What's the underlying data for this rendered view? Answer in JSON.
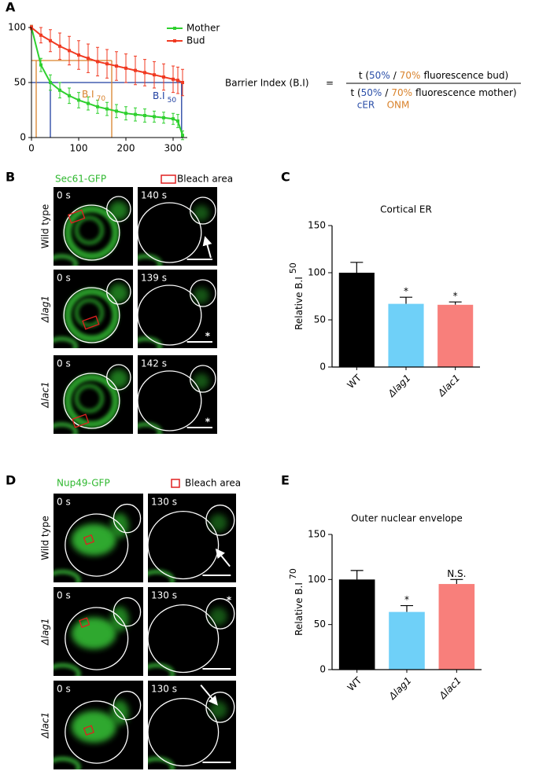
{
  "panel_labels": [
    "A",
    "B",
    "C",
    "D",
    "E"
  ],
  "chart_data": [
    {
      "type": "line",
      "x": [
        0,
        20,
        40,
        60,
        80,
        100,
        120,
        140,
        160,
        180,
        200,
        220,
        240,
        260,
        280,
        300,
        310,
        320
      ],
      "xlim": [
        0,
        330
      ],
      "xticks": [
        0,
        100,
        200,
        300
      ],
      "ylim": [
        0,
        100
      ],
      "yticks": [
        0,
        50,
        100
      ],
      "series": [
        {
          "name": "Mother",
          "color": "#2fd02f",
          "values": [
            100,
            66,
            50,
            43,
            38,
            34,
            31,
            28,
            26,
            24,
            22,
            21,
            20,
            19,
            18,
            17,
            15,
            2
          ],
          "errors": [
            2,
            6,
            7,
            7,
            7,
            7,
            6,
            6,
            6,
            6,
            6,
            6,
            6,
            5,
            5,
            5,
            6,
            4
          ]
        },
        {
          "name": "Bud",
          "color": "#f03a22",
          "values": [
            100,
            93,
            88,
            83,
            79,
            75,
            72,
            69,
            67,
            65,
            63,
            61,
            59,
            57,
            55,
            53,
            52,
            50
          ],
          "errors": [
            2,
            7,
            10,
            12,
            13,
            13,
            13,
            13,
            13,
            13,
            13,
            13,
            12,
            12,
            12,
            12,
            12,
            12
          ]
        }
      ],
      "ref_lines": [
        {
          "color": "#1f3fa0",
          "y": 50,
          "x": [
            40,
            318
          ]
        },
        {
          "color": "#d9822b",
          "y": 70,
          "x": [
            10,
            170
          ]
        }
      ],
      "annotations": [
        {
          "text": "B.I",
          "sub": "70",
          "color": "#d9822b"
        },
        {
          "text": "B.I",
          "sub": "50",
          "color": "#1f3fa0"
        }
      ]
    },
    {
      "type": "bar",
      "title": "Cortical ER",
      "ylabel": "Relative B.I",
      "ylabel_sub": "50",
      "ylim": [
        0,
        150
      ],
      "yticks": [
        0,
        50,
        100,
        150
      ],
      "categories": [
        "WT",
        "Δlag1",
        "Δlac1"
      ],
      "values": [
        100,
        67,
        66
      ],
      "errors": [
        11,
        7,
        3
      ],
      "colors": [
        "#000000",
        "#6fd0f8",
        "#f87f7b"
      ],
      "significance": [
        null,
        "*",
        "*"
      ]
    },
    {
      "type": "bar",
      "title": "Outer nuclear envelope",
      "ylabel": "Relative B.I",
      "ylabel_sub": "70",
      "ylim": [
        0,
        150
      ],
      "yticks": [
        0,
        50,
        100,
        150
      ],
      "categories": [
        "WT",
        "Δlag1",
        "Δlac1"
      ],
      "values": [
        100,
        64,
        95
      ],
      "errors": [
        10,
        7,
        5
      ],
      "colors": [
        "#000000",
        "#6fd0f8",
        "#f87f7b"
      ],
      "significance": [
        null,
        "*",
        "N.S."
      ]
    }
  ],
  "formula": {
    "lhs": "Barrier Index (B.I)",
    "equals": "=",
    "open": "t (",
    "pct50": "50%",
    "slash": "/",
    "pct70": "70%",
    "bud": "fluorescence bud)",
    "mother": "fluorescence mother)",
    "sub50": "cER",
    "sub70": "ONM"
  },
  "panel_B": {
    "marker": "Sec61-GFP",
    "legend": "Bleach area",
    "rows": [
      {
        "label": "Wild type",
        "times": [
          "0 s",
          "140 s"
        ]
      },
      {
        "label": "Δlag1",
        "times": [
          "0 s",
          "139 s"
        ],
        "asterisk": "*"
      },
      {
        "label": "Δlac1",
        "times": [
          "0 s",
          "142 s"
        ],
        "asterisk": "*"
      }
    ]
  },
  "panel_D": {
    "marker": "Nup49-GFP",
    "legend": "Bleach area",
    "rows": [
      {
        "label": "Wild type",
        "times": [
          "0 s",
          "130 s"
        ]
      },
      {
        "label": "Δlag1",
        "times": [
          "0 s",
          "130 s"
        ],
        "asterisk": "*"
      },
      {
        "label": "Δlac1",
        "times": [
          "0 s",
          "130 s"
        ]
      }
    ]
  }
}
